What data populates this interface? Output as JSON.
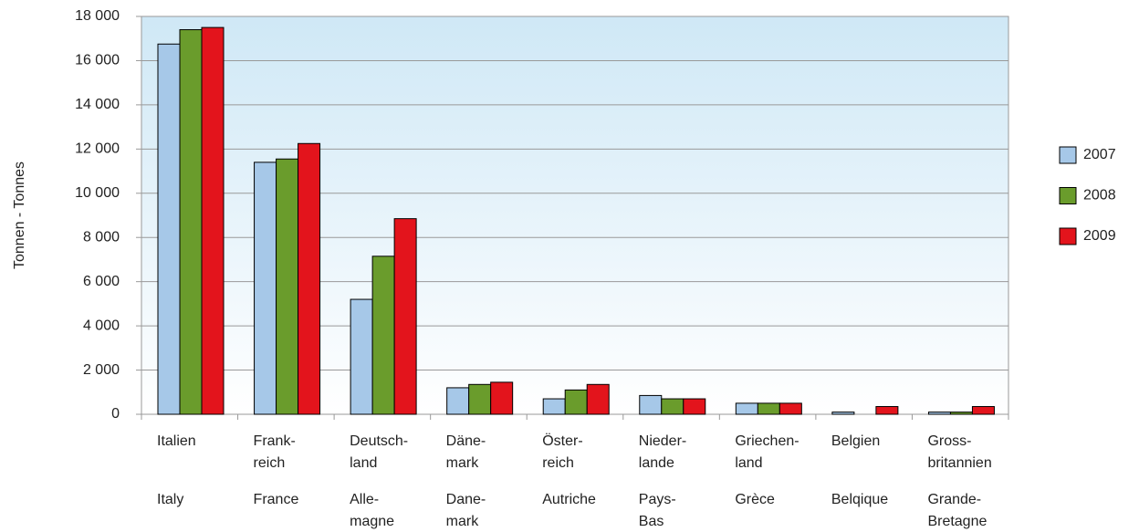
{
  "chart_data": {
    "type": "bar",
    "y_label": "Tonnen  -  Tonnes",
    "categories": [
      {
        "de": [
          "Italien"
        ],
        "fr": [
          "Italy"
        ]
      },
      {
        "de": [
          "Frank-",
          "reich"
        ],
        "fr": [
          "France"
        ]
      },
      {
        "de": [
          "Deutsch-",
          "land"
        ],
        "fr": [
          "Alle-",
          "magne"
        ]
      },
      {
        "de": [
          "Däne-",
          "mark"
        ],
        "fr": [
          "Dane-",
          "mark"
        ]
      },
      {
        "de": [
          "Öster-",
          "reich"
        ],
        "fr": [
          "Autriche"
        ]
      },
      {
        "de": [
          "Nieder-",
          "lande"
        ],
        "fr": [
          "Pays-",
          "Bas"
        ]
      },
      {
        "de": [
          "Griechen-",
          "land"
        ],
        "fr": [
          "Grèce"
        ]
      },
      {
        "de": [
          "Belgien"
        ],
        "fr": [
          "Belqique"
        ]
      },
      {
        "de": [
          "Gross-",
          "britannien"
        ],
        "fr": [
          "Grande-",
          "Bretagne"
        ]
      }
    ],
    "series": [
      {
        "name": "2007",
        "color": "#a6c8e8",
        "values": [
          16750,
          11400,
          5200,
          1200,
          700,
          850,
          500,
          100,
          100
        ]
      },
      {
        "name": "2008",
        "color": "#6a9c2c",
        "values": [
          17400,
          11550,
          7150,
          1350,
          1100,
          700,
          500,
          null,
          100
        ]
      },
      {
        "name": "2009",
        "color": "#e3141c",
        "values": [
          17500,
          12250,
          8850,
          1450,
          1350,
          700,
          500,
          350,
          350
        ]
      }
    ],
    "ylim": [
      0,
      18000
    ],
    "yticks": [
      0,
      {
        "value": 2000,
        "label": "2 000"
      },
      {
        "value": 4000,
        "label": "4 000"
      },
      {
        "value": 6000,
        "label": "6 000"
      },
      {
        "value": 8000,
        "label": "8 000"
      },
      {
        "value": 10000,
        "label": "10 000"
      },
      {
        "value": 12000,
        "label": "12 000"
      },
      {
        "value": 14000,
        "label": "14 000"
      },
      {
        "value": 16000,
        "label": "16 000"
      },
      {
        "value": 18000,
        "label": "18 000"
      }
    ],
    "grid": true,
    "legend": "right"
  }
}
